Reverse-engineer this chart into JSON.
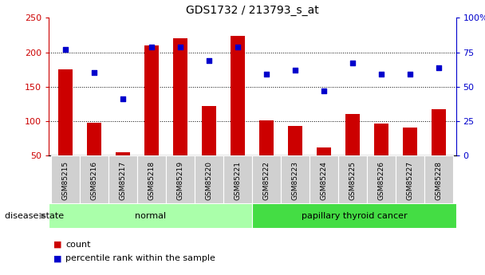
{
  "title": "GDS1732 / 213793_s_at",
  "samples": [
    "GSM85215",
    "GSM85216",
    "GSM85217",
    "GSM85218",
    "GSM85219",
    "GSM85220",
    "GSM85221",
    "GSM85222",
    "GSM85223",
    "GSM85224",
    "GSM85225",
    "GSM85226",
    "GSM85227",
    "GSM85228"
  ],
  "counts": [
    175,
    97,
    55,
    210,
    220,
    122,
    224,
    101,
    93,
    62,
    110,
    96,
    91,
    117
  ],
  "percentiles": [
    77,
    60,
    41,
    79,
    79,
    69,
    79,
    59,
    62,
    47,
    67,
    59,
    59,
    64
  ],
  "groups": [
    {
      "label": "normal",
      "start": 0,
      "end": 7,
      "color": "#aaffaa"
    },
    {
      "label": "papillary thyroid cancer",
      "start": 7,
      "end": 14,
      "color": "#44dd44"
    }
  ],
  "bar_color": "#CC0000",
  "dot_color": "#0000CC",
  "ylim_left": [
    50,
    250
  ],
  "ylim_right": [
    0,
    100
  ],
  "yticks_left": [
    50,
    100,
    150,
    200,
    250
  ],
  "yticks_right": [
    0,
    25,
    50,
    75,
    100
  ],
  "ytick_labels_right": [
    "0",
    "25",
    "50",
    "75",
    "100%"
  ],
  "hlines": [
    100,
    150,
    200
  ],
  "legend_count": "count",
  "legend_pct": "percentile rank within the sample",
  "disease_state_label": "disease state",
  "bar_width": 0.5,
  "bg_color": "#D0D0D0",
  "plot_bg": "#ffffff"
}
